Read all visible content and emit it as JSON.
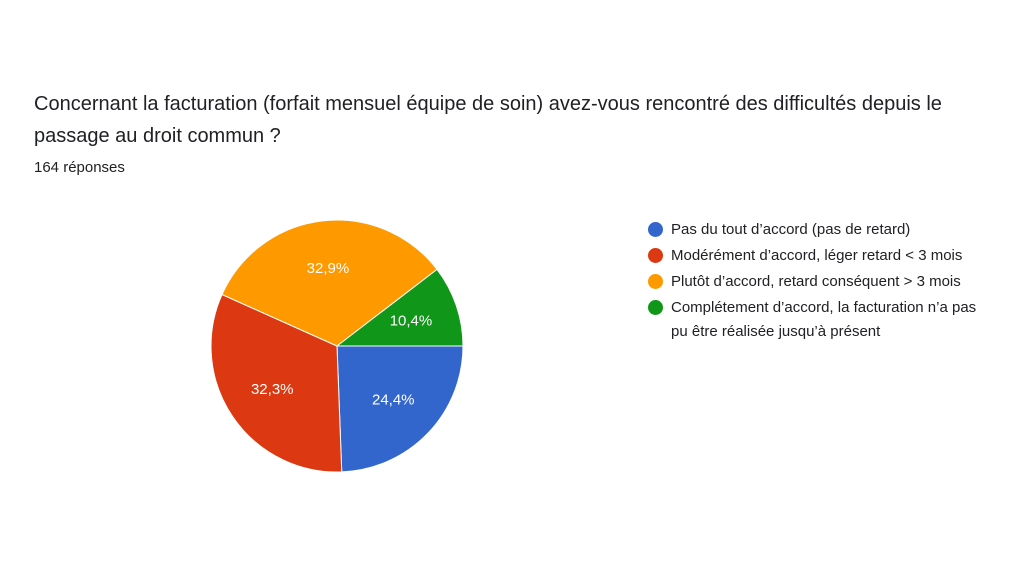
{
  "title": "Concernant la facturation (forfait mensuel équipe de soin) avez-vous rencontré des difficultés depuis le passage au droit commun ?",
  "subtitle": "164 réponses",
  "chart_data": {
    "type": "pie",
    "title": "Concernant la facturation (forfait mensuel équipe de soin) avez-vous rencontré des difficultés depuis le passage au droit commun ?",
    "total_responses": 164,
    "legend_position": "right",
    "slices": [
      {
        "label": "Pas du tout d’accord (pas de retard)",
        "value": 24.4,
        "display": "24,4%",
        "color": "#3366cc"
      },
      {
        "label": "Modérément d’accord, léger retard < 3 mois",
        "value": 32.3,
        "display": "32,3%",
        "color": "#dc3912"
      },
      {
        "label": "Plutôt d’accord, retard conséquent > 3 mois",
        "value": 32.9,
        "display": "32,9%",
        "color": "#ff9900"
      },
      {
        "label": "Complétement d’accord, la facturation n’a pas pu être réalisée jusqu’à présent",
        "value": 10.4,
        "display": "10,4%",
        "color": "#109618"
      }
    ]
  }
}
